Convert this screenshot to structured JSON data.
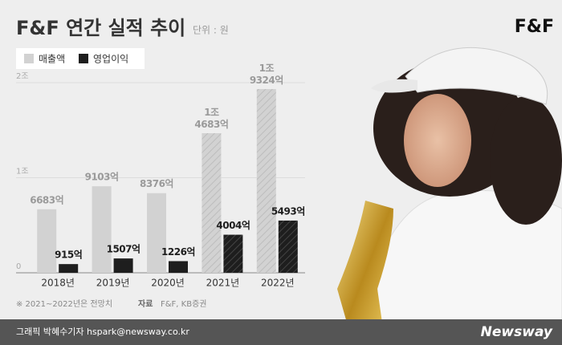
{
  "chart_data": {
    "type": "bar",
    "title": "F&F 연간 실적 추이",
    "subtitle": "단위 : 원",
    "brand": "F&F",
    "categories": [
      "2018년",
      "2019년",
      "2020년",
      "2021년",
      "2022년"
    ],
    "series": [
      {
        "name": "매출액",
        "color": "#d2d2d2",
        "label_color": "#9a9a9a",
        "values": [
          6683,
          9103,
          8376,
          14683,
          19324
        ],
        "value_labels": [
          "6683억",
          "9103억",
          "8376억",
          "1조\n4683억",
          "1조\n9324억"
        ],
        "hatched": [
          false,
          false,
          false,
          true,
          true
        ]
      },
      {
        "name": "영업이익",
        "color": "#1e1e1e",
        "label_color": "#1e1e1e",
        "values": [
          915,
          1507,
          1226,
          4004,
          5493
        ],
        "value_labels": [
          "915억",
          "1507억",
          "1226억",
          "4004억",
          "5493억"
        ],
        "hatched": [
          false,
          false,
          false,
          true,
          true
        ]
      }
    ],
    "ylim": [
      0,
      20000
    ],
    "yticks": [
      0,
      {
        "value": 10000,
        "label": "1조"
      },
      {
        "value": 20000,
        "label": "2조"
      }
    ],
    "grid": true,
    "footnote": "※  2021~2022년은 전망치",
    "source_label": "자료",
    "source": "F&F, KB증권",
    "credit": "그래픽 박혜수기자 hspark@newsway.co.kr",
    "logo": "Newsway"
  }
}
